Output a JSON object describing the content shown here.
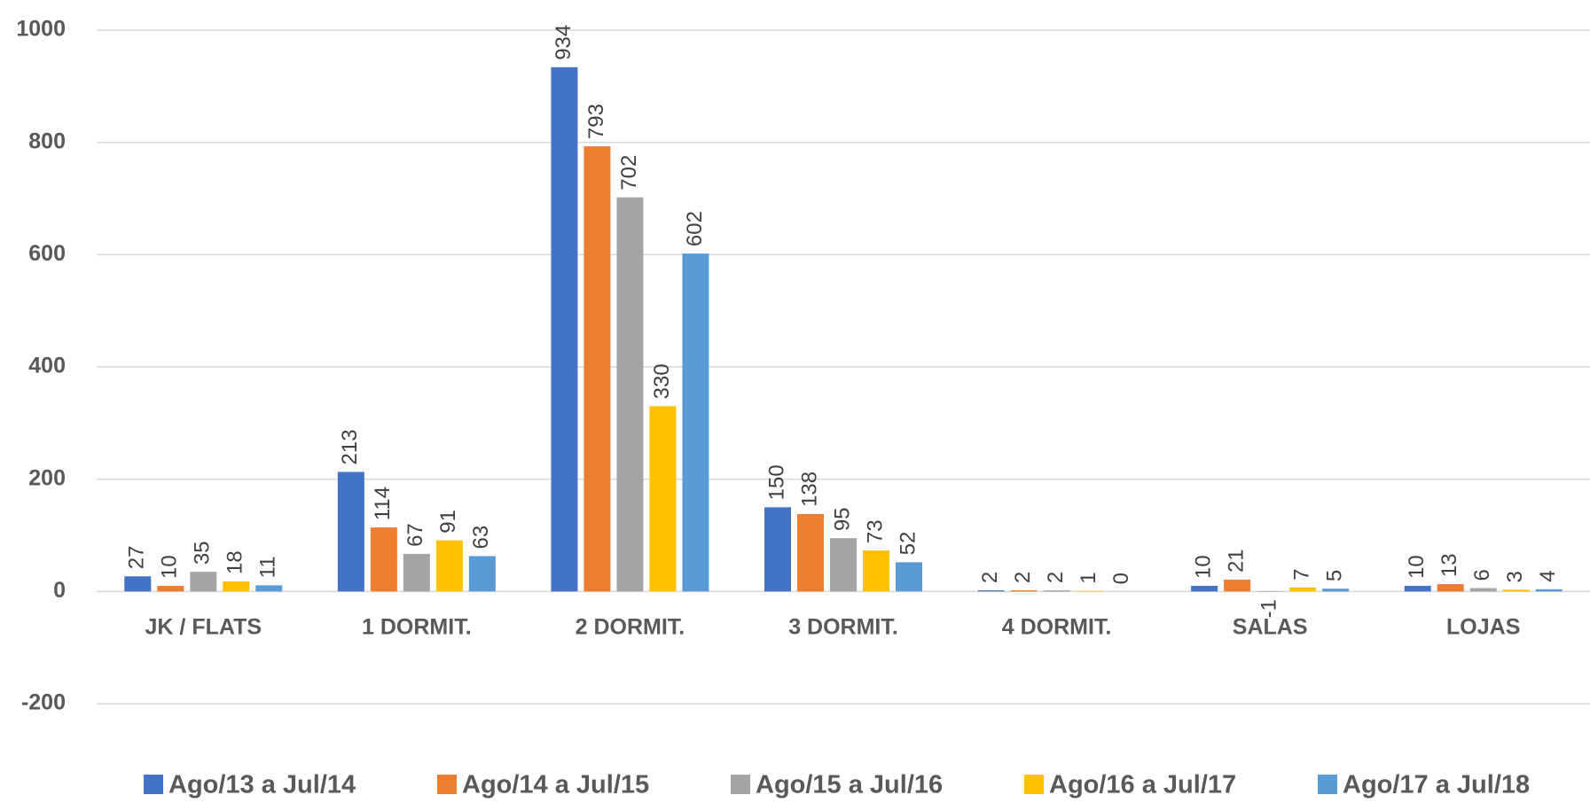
{
  "chart_data": {
    "type": "bar",
    "categories": [
      "JK / FLATS",
      "1 DORMIT.",
      "2 DORMIT.",
      "3 DORMIT.",
      "4 DORMIT.",
      "SALAS",
      "LOJAS"
    ],
    "series": [
      {
        "name": "Ago/13 a Jul/14",
        "color": "#4472c4",
        "values": [
          27,
          213,
          934,
          150,
          2,
          10,
          10
        ]
      },
      {
        "name": "Ago/14 a Jul/15",
        "color": "#ed7d31",
        "values": [
          10,
          114,
          793,
          138,
          2,
          21,
          13
        ]
      },
      {
        "name": "Ago/15 a Jul/16",
        "color": "#a5a5a5",
        "values": [
          35,
          67,
          702,
          95,
          2,
          -1,
          6
        ]
      },
      {
        "name": "Ago/16 a Jul/17",
        "color": "#ffc000",
        "values": [
          18,
          91,
          330,
          73,
          1,
          7,
          3
        ]
      },
      {
        "name": "Ago/17 a Jul/18",
        "color": "#5b9bd5",
        "values": [
          11,
          63,
          602,
          52,
          0,
          5,
          4
        ]
      }
    ],
    "ylim": [
      -200,
      1000
    ],
    "yticks": [
      -200,
      0,
      200,
      400,
      600,
      800,
      1000
    ],
    "grid": true,
    "legend": "bottom"
  }
}
